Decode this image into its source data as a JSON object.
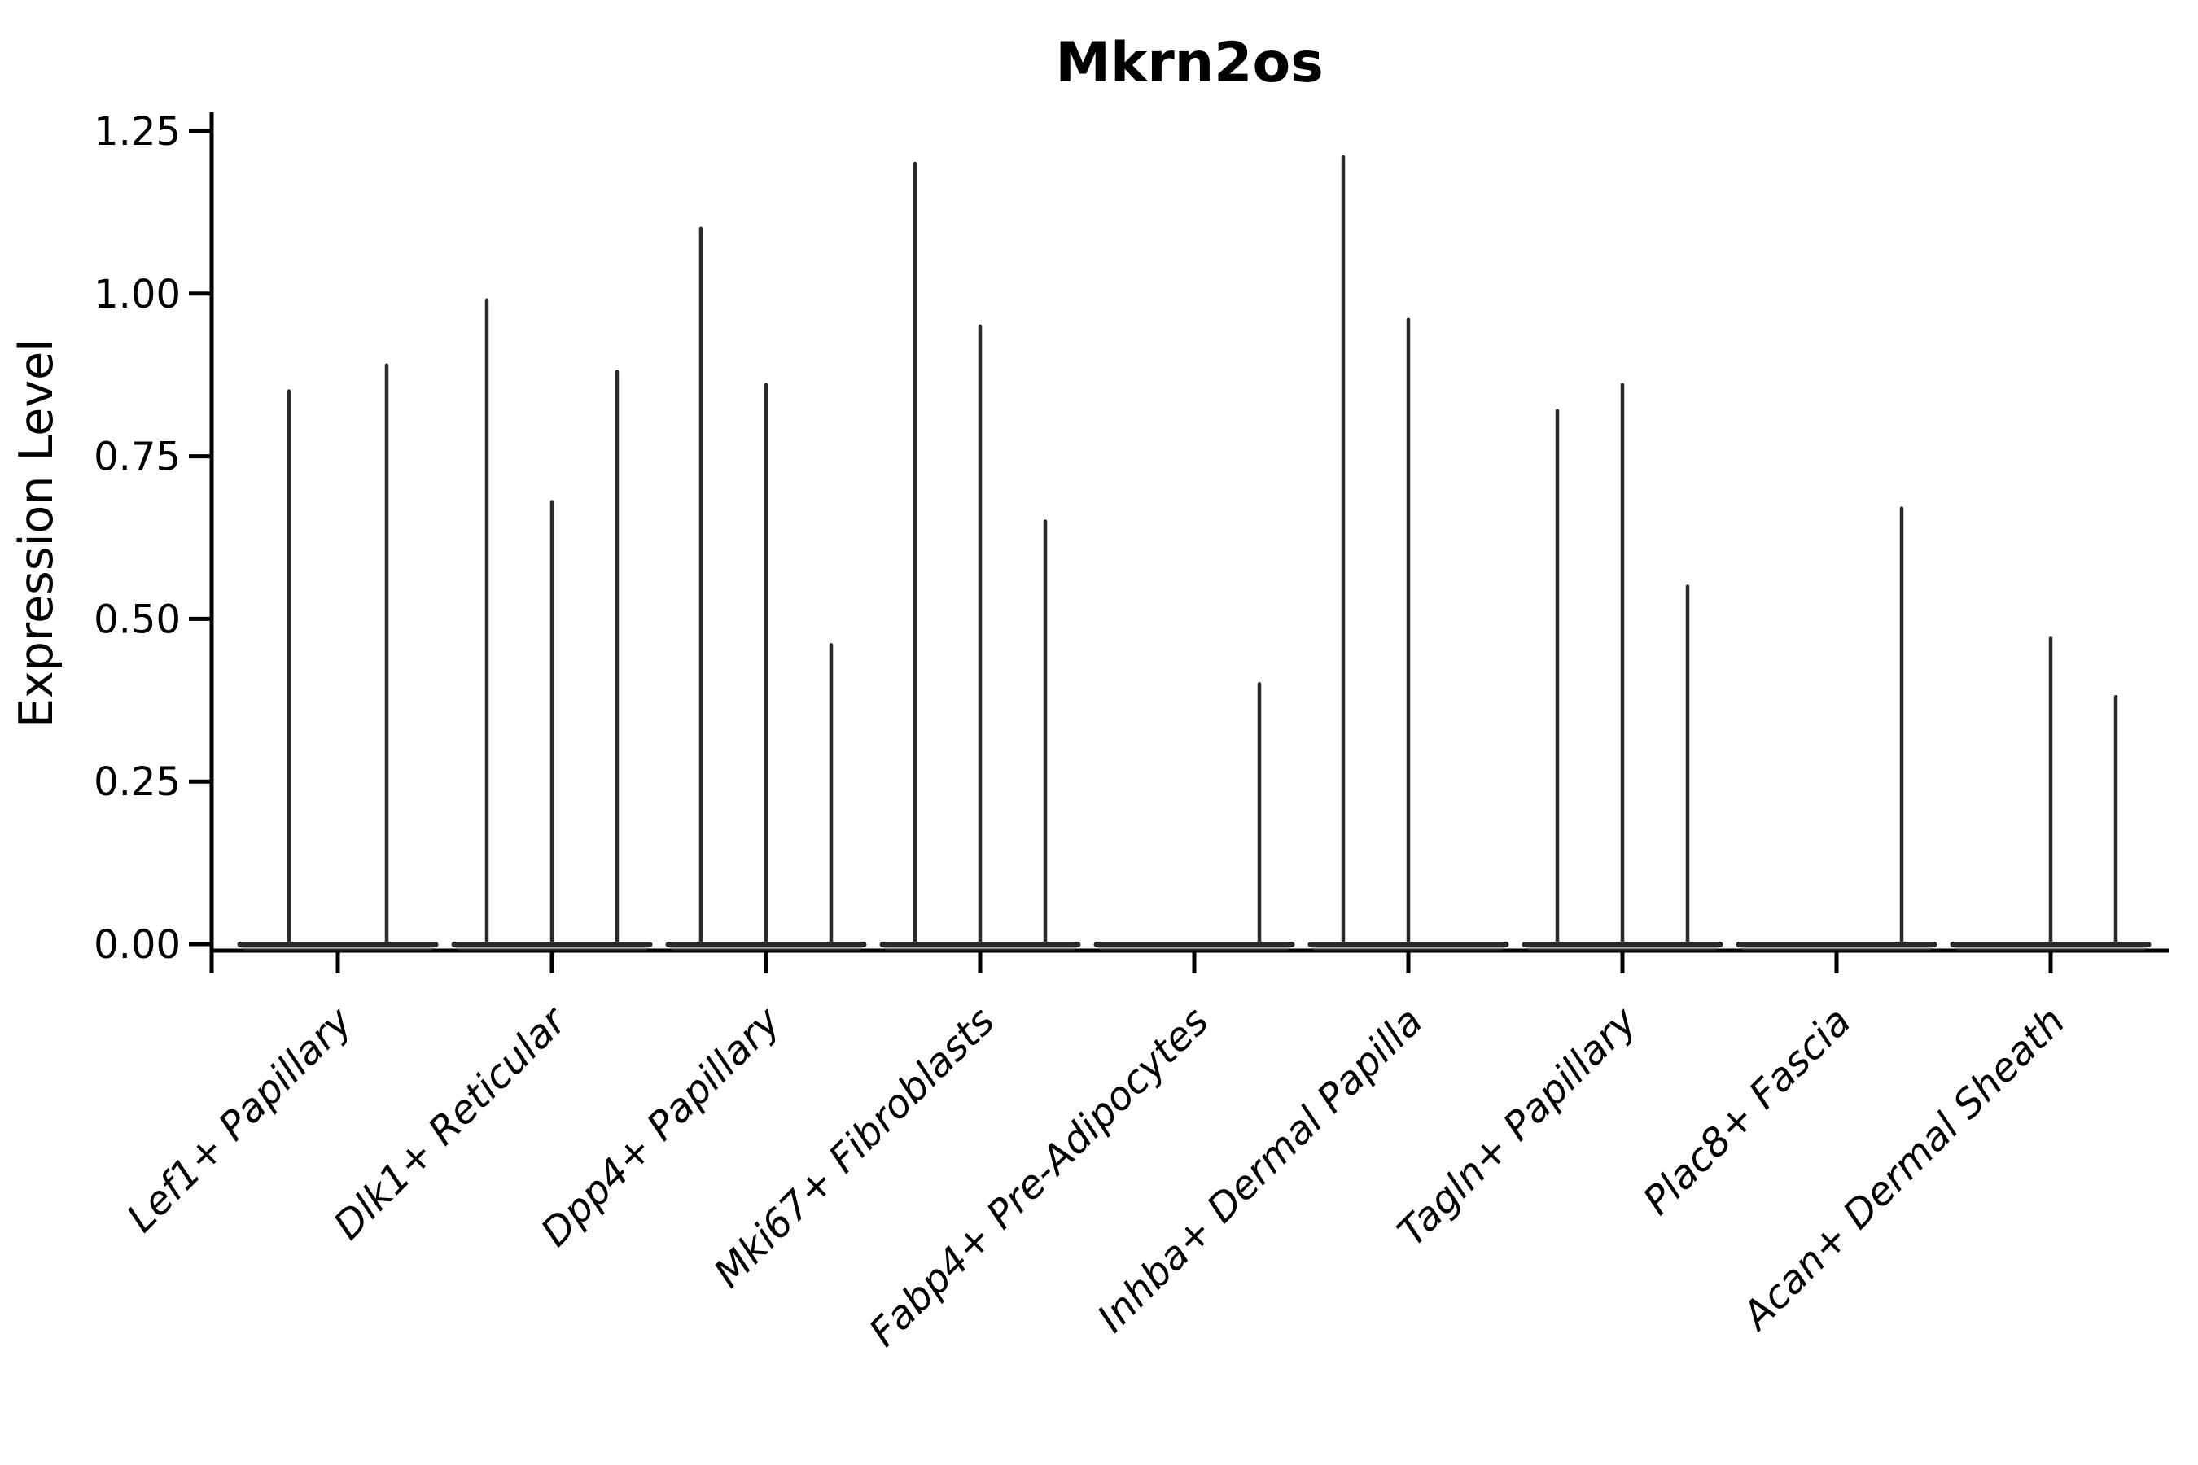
{
  "page": {
    "background": "#ffffff"
  },
  "chart_data": {
    "type": "violin",
    "title": "Mkrn2os",
    "ylabel": "Expression Level",
    "xlabel": "",
    "grid": false,
    "legend": false,
    "ylim": [
      0,
      1.28
    ],
    "violin_color": "#2a2a2a",
    "violin_soft_color": "#6e6e6e",
    "axis_color": "#000000",
    "yticks": [
      {
        "value": 0.0,
        "label": "0.00"
      },
      {
        "value": 0.25,
        "label": "0.25"
      },
      {
        "value": 0.5,
        "label": "0.50"
      },
      {
        "value": 0.75,
        "label": "0.75"
      },
      {
        "value": 1.0,
        "label": "1.00"
      },
      {
        "value": 1.25,
        "label": "1.25"
      }
    ],
    "categories": [
      "Lef1+ Papillary",
      "Dlk1+ Reticular",
      "Dpp4+ Papillary",
      "Mki67+ Fibroblasts",
      "Fabp4+ Pre-Adipocytes",
      "Inhba+ Dermal Papilla",
      "Tagln+ Papillary",
      "Plac8+ Fascia",
      "Acan+ Dermal Sheath"
    ],
    "groups": [
      {
        "category": "Lef1+ Papillary",
        "violins": [
          {
            "max": 0.85
          },
          {
            "max": 0.89
          }
        ]
      },
      {
        "category": "Dlk1+ Reticular",
        "violins": [
          {
            "max": 0.99
          },
          {
            "max": 0.68
          },
          {
            "max": 0.88
          }
        ]
      },
      {
        "category": "Dpp4+ Papillary",
        "violins": [
          {
            "max": 1.1
          },
          {
            "max": 0.86
          },
          {
            "max": 0.46
          }
        ]
      },
      {
        "category": "Mki67+ Fibroblasts",
        "violins": [
          {
            "max": 1.2
          },
          {
            "max": 0.95
          },
          {
            "max": 0.65
          }
        ]
      },
      {
        "category": "Fabp4+ Pre-Adipocytes",
        "violins": [
          {
            "max": 0
          },
          {
            "max": 0
          },
          {
            "max": 0.4
          }
        ]
      },
      {
        "category": "Inhba+ Dermal Papilla",
        "violins": [
          {
            "max": 1.21
          },
          {
            "max": 0.96
          },
          {
            "max": 0
          }
        ]
      },
      {
        "category": "Tagln+ Papillary",
        "violins": [
          {
            "max": 0.82
          },
          {
            "max": 0.86
          },
          {
            "max": 0.55
          }
        ]
      },
      {
        "category": "Plac8+ Fascia",
        "violins": [
          {
            "max": 0
          },
          {
            "max": 0
          },
          {
            "max": 0.67
          }
        ]
      },
      {
        "category": "Acan+ Dermal Sheath",
        "violins": [
          {
            "max": 0
          },
          {
            "max": 0.47
          },
          {
            "max": 0.38
          }
        ]
      }
    ]
  }
}
